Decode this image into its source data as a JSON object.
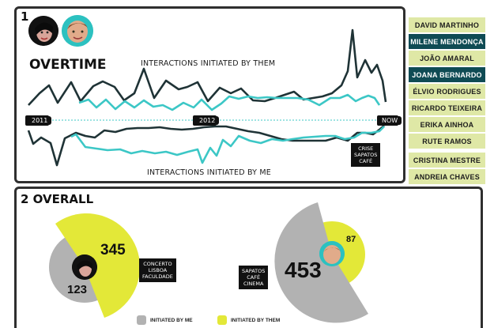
{
  "panel1": {
    "number": "1",
    "title": "OVERTIME",
    "label_top": "INTERACTIONS INITIATED BY THEM",
    "label_bottom": "INTERACTIONS INITIATED BY ME",
    "timeline": [
      "2011",
      "2012",
      "NOW"
    ],
    "annotation": [
      "CRISE",
      "SAPATOS",
      "CAFÉ"
    ]
  },
  "panel2": {
    "number": "2",
    "title": "OVERALL",
    "chart1": {
      "me": 123,
      "them": 345,
      "annotation": [
        "CONCERTO",
        "LISBOA",
        "FACULDADE"
      ]
    },
    "chart2": {
      "me": 453,
      "them": 87,
      "annotation": [
        "SAPATOS",
        "CAFÉ",
        "CINEMA"
      ]
    },
    "legend": {
      "me": "INITIATED BY ME",
      "them": "INITIATED BY THEM"
    }
  },
  "sidebar": {
    "items": [
      {
        "label": "DAVID MARTINHO",
        "selected": false
      },
      {
        "label": "MILENE MENDONÇA",
        "selected": true
      },
      {
        "label": "JOÃO AMARAL",
        "selected": false
      },
      {
        "label": "JOANA BERNARDO",
        "selected": true
      },
      {
        "label": "ÉLVIO RODRIGUES",
        "selected": false
      },
      {
        "label": "RICARDO TEIXEIRA",
        "selected": false
      },
      {
        "label": "ERIKA AINHOA",
        "selected": false
      },
      {
        "label": "RUTE RAMOS",
        "selected": false
      },
      {
        "label": "CRISTINA MESTRE",
        "selected": false
      },
      {
        "label": "ANDREIA CHAVES",
        "selected": false
      }
    ]
  },
  "colors": {
    "dark": "#1f3336",
    "teal": "#3cc7c6",
    "lime": "#e3e838",
    "gray": "#b2b2b2",
    "selected": "#0f4b54"
  }
}
